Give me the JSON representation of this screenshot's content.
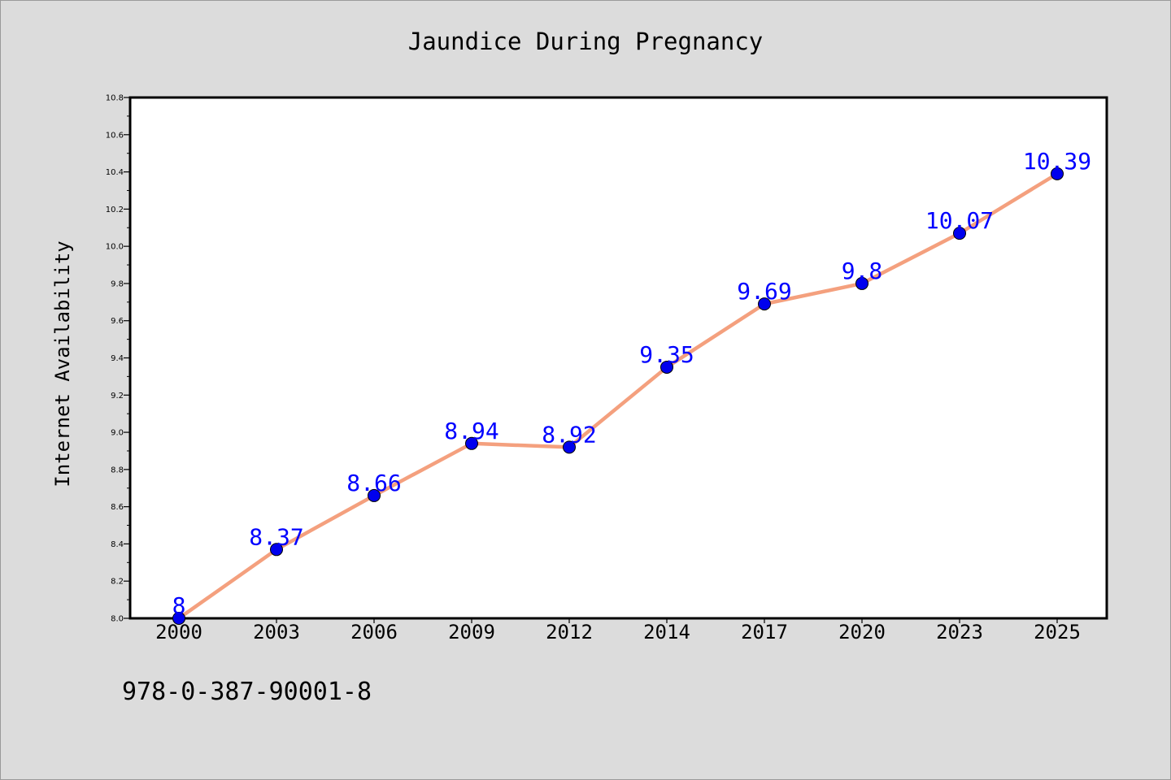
{
  "chart_data": {
    "type": "line",
    "title": "Jaundice During Pregnancy",
    "ylabel": "Internet Availability",
    "xlabel": "",
    "categories": [
      "2000",
      "2003",
      "2006",
      "2009",
      "2012",
      "2014",
      "2017",
      "2020",
      "2023",
      "2025"
    ],
    "series": [
      {
        "values": [
          8,
          8.37,
          8.66,
          8.94,
          8.92,
          9.35,
          9.69,
          9.8,
          10.07,
          10.39
        ]
      }
    ],
    "data_labels": [
      "8",
      "8.37",
      "8.66",
      "8.94",
      "8.92",
      "9.35",
      "9.69",
      "9.8",
      "10.07",
      "10.39"
    ],
    "ylim": [
      8.0,
      10.8
    ],
    "yticks": [
      "8.0",
      "8.2",
      "8.4",
      "8.6",
      "8.8",
      "9.0",
      "9.2",
      "9.4",
      "9.6",
      "9.8",
      "10.0",
      "10.2",
      "10.4",
      "10.6",
      "10.8"
    ],
    "grid": false,
    "legend": "none",
    "colors": {
      "line": "#f4a07e",
      "marker": "#0000ee",
      "label": "#0000ff"
    }
  },
  "footer_text": "978-0-387-90001-8"
}
